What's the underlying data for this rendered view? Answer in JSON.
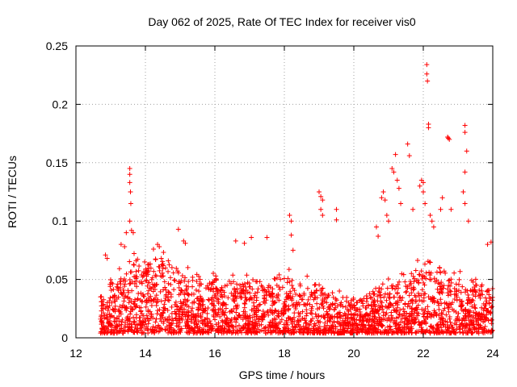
{
  "chart_data": {
    "type": "scatter",
    "title": "Day 062 of 2025, Rate Of TEC Index for receiver vis0",
    "xlabel": "GPS time / hours",
    "ylabel": "ROTI / TECUs",
    "xlim": [
      12,
      24
    ],
    "ylim": [
      0,
      0.25
    ],
    "xticks": [
      "12",
      "14",
      "16",
      "18",
      "20",
      "22",
      "24"
    ],
    "yticks": [
      "0",
      "0.05",
      "0.1",
      "0.15",
      "0.2",
      "0.25"
    ],
    "grid": true,
    "marker": "+",
    "color": "#ff0000",
    "x_start": 12.7,
    "x_end": 24.0,
    "baseline_low": 0.004,
    "dense_band": [
      {
        "x": 12.7,
        "ceil": 0.035
      },
      {
        "x": 13.3,
        "ceil": 0.055
      },
      {
        "x": 13.6,
        "ceil": 0.065
      },
      {
        "x": 14.4,
        "ceil": 0.065
      },
      {
        "x": 15.0,
        "ceil": 0.055
      },
      {
        "x": 15.6,
        "ceil": 0.045
      },
      {
        "x": 16.5,
        "ceil": 0.05
      },
      {
        "x": 17.5,
        "ceil": 0.045
      },
      {
        "x": 18.3,
        "ceil": 0.05
      },
      {
        "x": 19.0,
        "ceil": 0.04
      },
      {
        "x": 19.5,
        "ceil": 0.035
      },
      {
        "x": 20.0,
        "ceil": 0.03
      },
      {
        "x": 20.5,
        "ceil": 0.035
      },
      {
        "x": 21.0,
        "ceil": 0.045
      },
      {
        "x": 21.5,
        "ceil": 0.05
      },
      {
        "x": 22.0,
        "ceil": 0.06
      },
      {
        "x": 22.5,
        "ceil": 0.055
      },
      {
        "x": 23.0,
        "ceil": 0.05
      },
      {
        "x": 23.5,
        "ceil": 0.045
      },
      {
        "x": 24.0,
        "ceil": 0.04
      }
    ],
    "highlights": [
      {
        "x": 12.85,
        "y": 0.071
      },
      {
        "x": 12.9,
        "y": 0.068
      },
      {
        "x": 13.3,
        "y": 0.08
      },
      {
        "x": 13.4,
        "y": 0.078
      },
      {
        "x": 13.45,
        "y": 0.09
      },
      {
        "x": 13.55,
        "y": 0.145
      },
      {
        "x": 13.55,
        "y": 0.14
      },
      {
        "x": 13.55,
        "y": 0.133
      },
      {
        "x": 13.57,
        "y": 0.125
      },
      {
        "x": 13.58,
        "y": 0.115
      },
      {
        "x": 13.55,
        "y": 0.1
      },
      {
        "x": 13.6,
        "y": 0.092
      },
      {
        "x": 13.65,
        "y": 0.09
      },
      {
        "x": 14.35,
        "y": 0.08
      },
      {
        "x": 14.4,
        "y": 0.078
      },
      {
        "x": 14.95,
        "y": 0.093
      },
      {
        "x": 15.1,
        "y": 0.083
      },
      {
        "x": 15.15,
        "y": 0.081
      },
      {
        "x": 16.6,
        "y": 0.083
      },
      {
        "x": 16.85,
        "y": 0.081
      },
      {
        "x": 17.05,
        "y": 0.086
      },
      {
        "x": 17.5,
        "y": 0.086
      },
      {
        "x": 18.15,
        "y": 0.105
      },
      {
        "x": 18.2,
        "y": 0.1
      },
      {
        "x": 18.2,
        "y": 0.088
      },
      {
        "x": 18.25,
        "y": 0.075
      },
      {
        "x": 19.0,
        "y": 0.125
      },
      {
        "x": 19.05,
        "y": 0.121
      },
      {
        "x": 19.1,
        "y": 0.118
      },
      {
        "x": 19.05,
        "y": 0.11
      },
      {
        "x": 19.1,
        "y": 0.105
      },
      {
        "x": 19.5,
        "y": 0.11
      },
      {
        "x": 19.5,
        "y": 0.101
      },
      {
        "x": 20.65,
        "y": 0.095
      },
      {
        "x": 20.7,
        "y": 0.087
      },
      {
        "x": 20.8,
        "y": 0.12
      },
      {
        "x": 20.85,
        "y": 0.125
      },
      {
        "x": 20.9,
        "y": 0.118
      },
      {
        "x": 20.95,
        "y": 0.105
      },
      {
        "x": 21.0,
        "y": 0.1
      },
      {
        "x": 21.1,
        "y": 0.145
      },
      {
        "x": 21.15,
        "y": 0.142
      },
      {
        "x": 21.2,
        "y": 0.157
      },
      {
        "x": 21.25,
        "y": 0.135
      },
      {
        "x": 21.3,
        "y": 0.128
      },
      {
        "x": 21.35,
        "y": 0.115
      },
      {
        "x": 21.55,
        "y": 0.166
      },
      {
        "x": 21.6,
        "y": 0.156
      },
      {
        "x": 21.7,
        "y": 0.11
      },
      {
        "x": 21.9,
        "y": 0.13
      },
      {
        "x": 21.95,
        "y": 0.135
      },
      {
        "x": 22.0,
        "y": 0.133
      },
      {
        "x": 22.0,
        "y": 0.125
      },
      {
        "x": 22.05,
        "y": 0.115
      },
      {
        "x": 22.1,
        "y": 0.234
      },
      {
        "x": 22.1,
        "y": 0.226
      },
      {
        "x": 22.12,
        "y": 0.22
      },
      {
        "x": 22.15,
        "y": 0.183
      },
      {
        "x": 22.15,
        "y": 0.18
      },
      {
        "x": 22.2,
        "y": 0.105
      },
      {
        "x": 22.25,
        "y": 0.1
      },
      {
        "x": 22.3,
        "y": 0.095
      },
      {
        "x": 22.5,
        "y": 0.11
      },
      {
        "x": 22.55,
        "y": 0.12
      },
      {
        "x": 22.7,
        "y": 0.172
      },
      {
        "x": 22.72,
        "y": 0.171
      },
      {
        "x": 22.75,
        "y": 0.17
      },
      {
        "x": 22.8,
        "y": 0.11
      },
      {
        "x": 23.2,
        "y": 0.182
      },
      {
        "x": 23.2,
        "y": 0.176
      },
      {
        "x": 23.25,
        "y": 0.16
      },
      {
        "x": 23.2,
        "y": 0.142
      },
      {
        "x": 23.15,
        "y": 0.125
      },
      {
        "x": 23.2,
        "y": 0.115
      },
      {
        "x": 23.3,
        "y": 0.1
      },
      {
        "x": 23.85,
        "y": 0.08
      },
      {
        "x": 23.95,
        "y": 0.082
      }
    ]
  }
}
